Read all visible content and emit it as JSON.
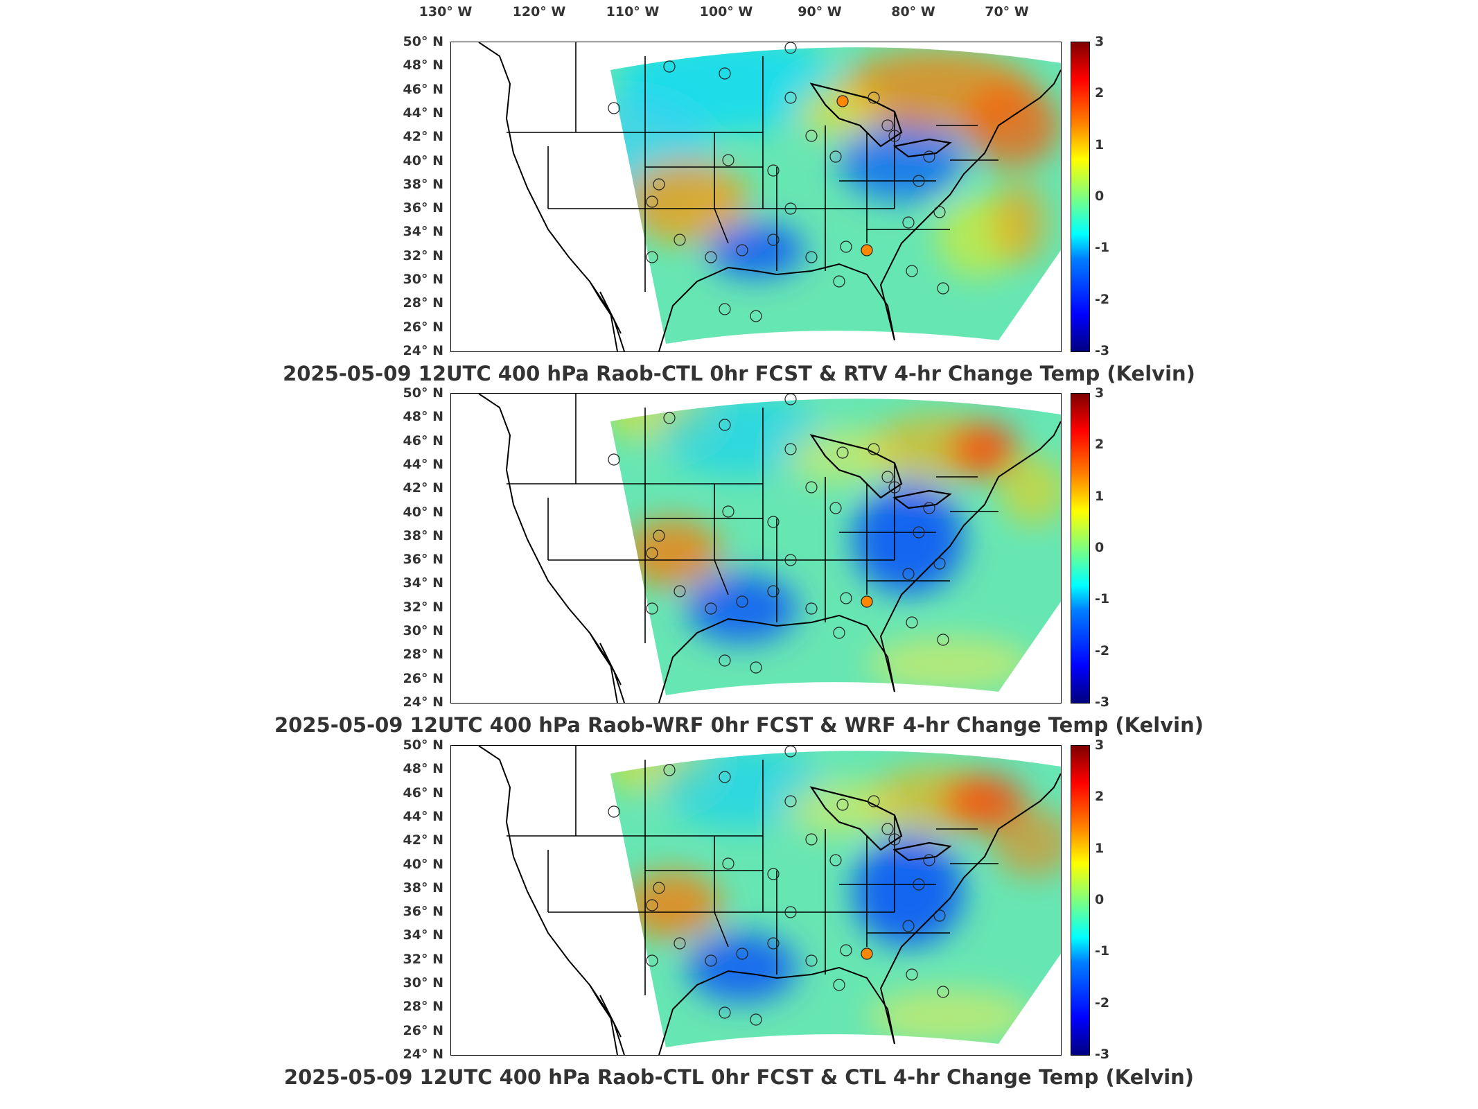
{
  "lon_labels": [
    "130° W",
    "120° W",
    "110° W",
    "100° W",
    "90° W",
    "80° W",
    "70° W"
  ],
  "lat_labels": [
    "50° N",
    "48° N",
    "46° N",
    "44° N",
    "42° N",
    "40° N",
    "38° N",
    "36° N",
    "34° N",
    "32° N",
    "30° N",
    "28° N",
    "26° N",
    "24° N"
  ],
  "colorbar": {
    "ticks": [
      "3",
      "2",
      "1",
      "0",
      "-1",
      "-2",
      "-3"
    ],
    "min": -3,
    "max": 3,
    "colormap": "jet"
  },
  "panels": [
    {
      "title": "2025-05-09 12UTC 400 hPa Raob-CTL 0hr FCST & RTV 4-hr Change Temp (Kelvin)"
    },
    {
      "title": "2025-05-09 12UTC 400 hPa Raob-WRF 0hr FCST & WRF 4-hr Change Temp (Kelvin)"
    },
    {
      "title": "2025-05-09 12UTC 400 hPa Raob-CTL 0hr FCST & CTL 4-hr Change Temp (Kelvin)"
    }
  ],
  "colors": {
    "frame": "#000000",
    "coast": "#000000",
    "background": "#ffffff"
  }
}
